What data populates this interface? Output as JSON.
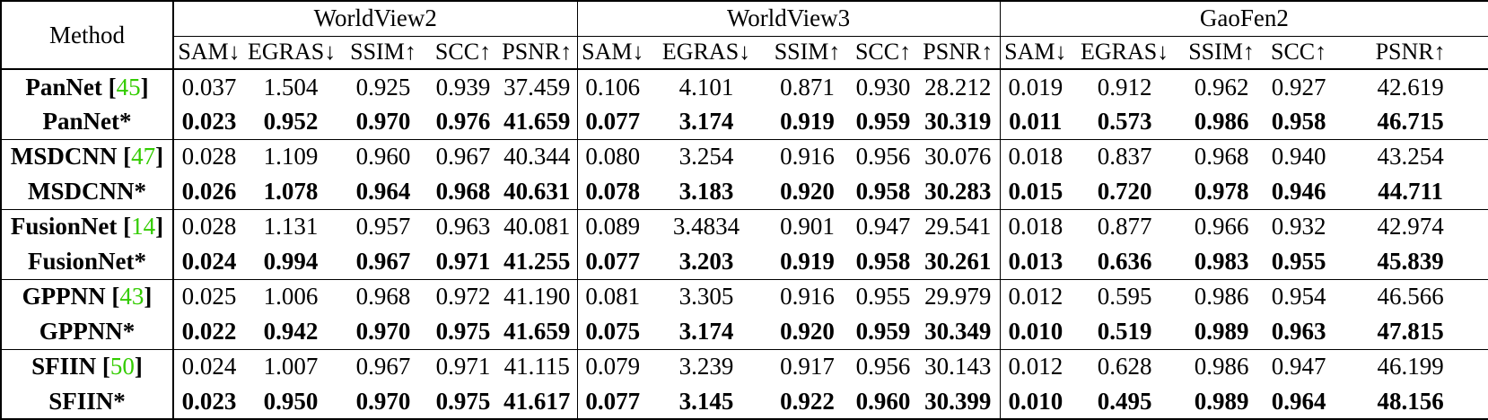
{
  "table": {
    "method_header": "Method",
    "datasets": [
      "WorldView2",
      "WorldView3",
      "GaoFen2"
    ],
    "metrics": [
      "SAM↓",
      "EGRAS↓",
      "SSIM↑",
      "SCC↑",
      "PSNR↑"
    ],
    "groups": [
      {
        "base": {
          "name": "PanNet",
          "ref": "45",
          "values": [
            "0.037",
            "1.504",
            "0.925",
            "0.939",
            "37.459",
            "0.106",
            "4.101",
            "0.871",
            "0.930",
            "28.212",
            "0.019",
            "0.912",
            "0.962",
            "0.927",
            "42.619"
          ]
        },
        "star": {
          "name": "PanNet*",
          "values": [
            "0.023",
            "0.952",
            "0.970",
            "0.976",
            "41.659",
            "0.077",
            "3.174",
            "0.919",
            "0.959",
            "30.319",
            "0.011",
            "0.573",
            "0.986",
            "0.958",
            "46.715"
          ]
        }
      },
      {
        "base": {
          "name": "MSDCNN",
          "ref": "47",
          "values": [
            "0.028",
            "1.109",
            "0.960",
            "0.967",
            "40.344",
            "0.080",
            "3.254",
            "0.916",
            "0.956",
            "30.076",
            "0.018",
            "0.837",
            "0.968",
            "0.940",
            "43.254"
          ]
        },
        "star": {
          "name": "MSDCNN*",
          "values": [
            "0.026",
            "1.078",
            "0.964",
            "0.968",
            "40.631",
            "0.078",
            "3.183",
            "0.920",
            "0.958",
            "30.283",
            "0.015",
            "0.720",
            "0.978",
            "0.946",
            "44.711"
          ]
        }
      },
      {
        "base": {
          "name": "FusionNet",
          "ref": "14",
          "values": [
            "0.028",
            "1.131",
            "0.957",
            "0.963",
            "40.081",
            "0.089",
            "3.4834",
            "0.901",
            "0.947",
            "29.541",
            "0.018",
            "0.877",
            "0.966",
            "0.932",
            "42.974"
          ]
        },
        "star": {
          "name": "FusionNet*",
          "values": [
            "0.024",
            "0.994",
            "0.967",
            "0.971",
            "41.255",
            "0.077",
            "3.203",
            "0.919",
            "0.958",
            "30.261",
            "0.013",
            "0.636",
            "0.983",
            "0.955",
            "45.839"
          ]
        }
      },
      {
        "base": {
          "name": "GPPNN",
          "ref": "43",
          "values": [
            "0.025",
            "1.006",
            "0.968",
            "0.972",
            "41.190",
            "0.081",
            "3.305",
            "0.916",
            "0.955",
            "29.979",
            "0.012",
            "0.595",
            "0.986",
            "0.954",
            "46.566"
          ]
        },
        "star": {
          "name": "GPPNN*",
          "values": [
            "0.022",
            "0.942",
            "0.970",
            "0.975",
            "41.659",
            "0.075",
            "3.174",
            "0.920",
            "0.959",
            "30.349",
            "0.010",
            "0.519",
            "0.989",
            "0.963",
            "47.815"
          ]
        }
      },
      {
        "base": {
          "name": "SFIIN",
          "ref": "50",
          "values": [
            "0.024",
            "1.007",
            "0.967",
            "0.971",
            "41.115",
            "0.079",
            "3.239",
            "0.917",
            "0.956",
            "30.143",
            "0.012",
            "0.628",
            "0.986",
            "0.947",
            "46.199"
          ]
        },
        "star": {
          "name": "SFIIN*",
          "values": [
            "0.023",
            "0.950",
            "0.970",
            "0.975",
            "41.617",
            "0.077",
            "3.145",
            "0.922",
            "0.960",
            "30.399",
            "0.010",
            "0.495",
            "0.989",
            "0.964",
            "48.156"
          ]
        }
      }
    ],
    "colors": {
      "text": "#000000",
      "citation": "#33cc00",
      "rule": "#000000"
    }
  }
}
